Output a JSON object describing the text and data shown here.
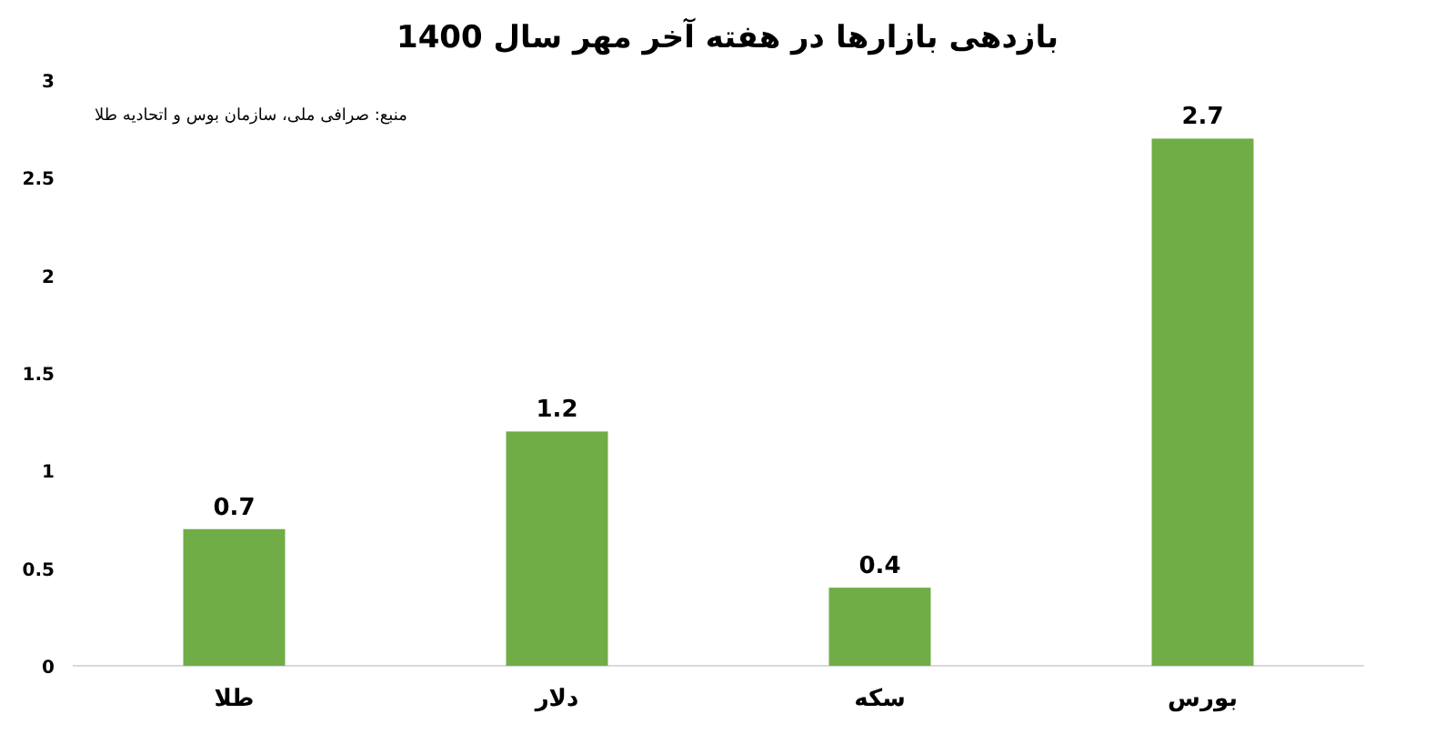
{
  "chart_data": {
    "type": "bar",
    "title": "بازدهی بازارها در هفته آخر مهر سال 1400",
    "annotations": [
      "منبع: صرافی ملی، سازمان بوس و اتحادیه طلا"
    ],
    "categories": [
      "طلا",
      "دلار",
      "سکه",
      "بورس"
    ],
    "values": [
      0.7,
      1.2,
      0.4,
      2.7
    ],
    "color": "#70ad47",
    "ylim": [
      0,
      3
    ],
    "yticks": [
      0,
      0.5,
      1,
      1.5,
      2,
      2.5,
      3
    ],
    "grid": false,
    "data_labels": true
  }
}
